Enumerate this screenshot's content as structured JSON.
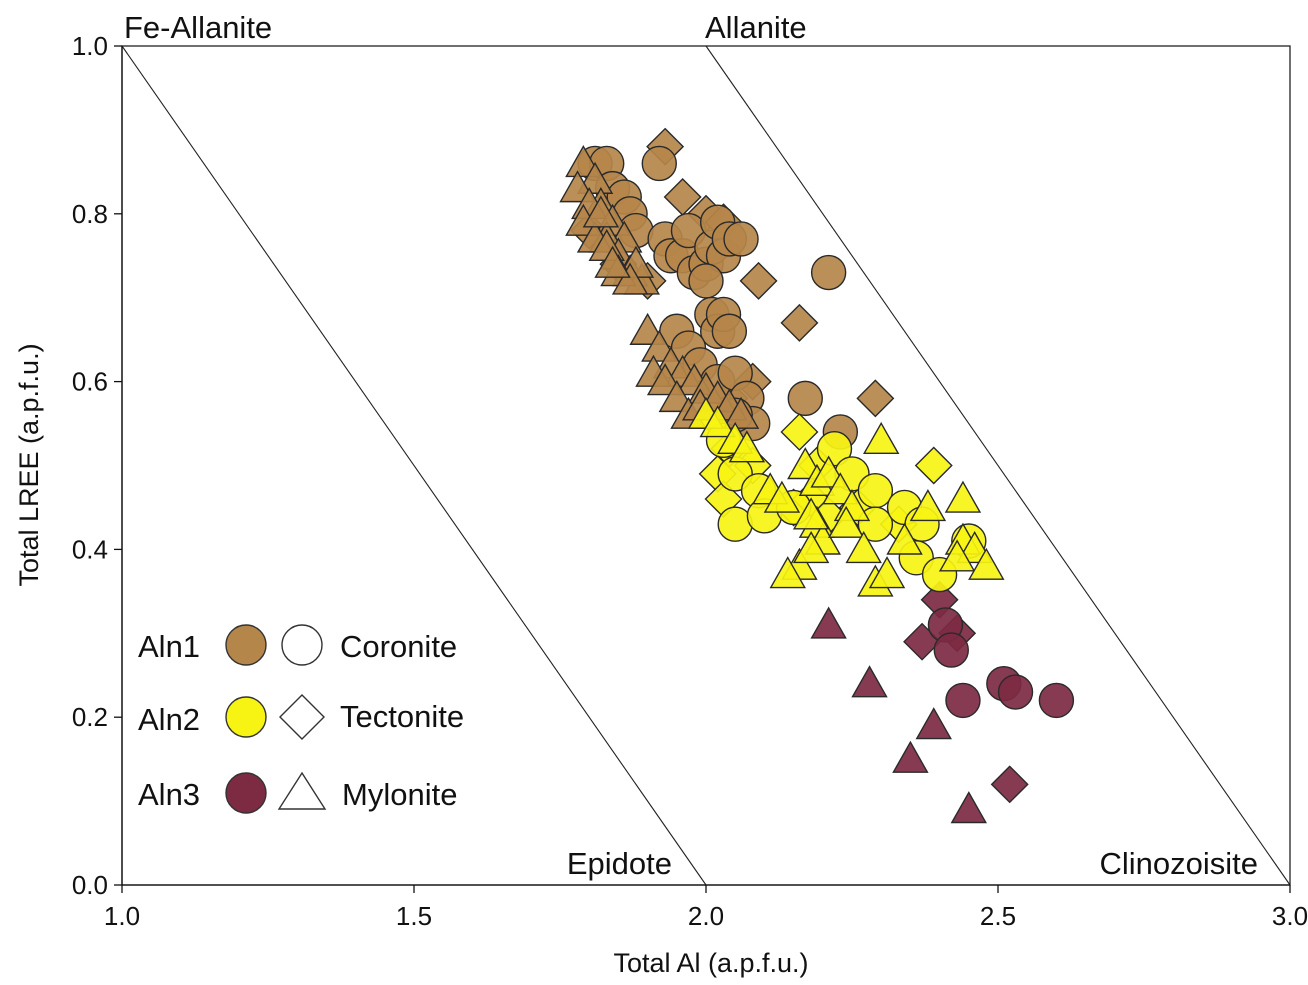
{
  "chart_data": {
    "type": "scatter",
    "xlabel": "Total Al (a.p.f.u.)",
    "ylabel": "Total LREE (a.p.f.u.)",
    "xlim": [
      1.0,
      3.0
    ],
    "ylim": [
      0.0,
      1.0
    ],
    "x_ticks": [
      "1.0",
      "1.5",
      "2.0",
      "2.5",
      "3.0"
    ],
    "y_ticks": [
      "0.0",
      "0.2",
      "0.4",
      "0.6",
      "0.8",
      "1.0"
    ],
    "grid": false,
    "field_labels": {
      "fe_allanite": "Fe-Allanite",
      "allanite": "Allanite",
      "epidote": "Epidote",
      "clinozoisite": "Clinozoisite"
    },
    "field_boundaries": [
      {
        "x": [
          1.0,
          2.0
        ],
        "y": [
          1.0,
          0.0
        ]
      },
      {
        "x": [
          2.0,
          3.0
        ],
        "y": [
          1.0,
          0.0
        ]
      }
    ],
    "legend": {
      "position": "bottom-left",
      "groups": [
        {
          "label": "Aln1",
          "color": "#b5864a"
        },
        {
          "label": "Aln2",
          "color": "#f7f414"
        },
        {
          "label": "Aln3",
          "color": "#7d2a43"
        }
      ],
      "textures": [
        {
          "label": "Coronite",
          "marker": "circle"
        },
        {
          "label": "Tectonite",
          "marker": "diamond"
        },
        {
          "label": "Mylonite",
          "marker": "triangle"
        }
      ]
    },
    "series": [
      {
        "group": "Aln1",
        "marker": "circle",
        "points": [
          [
            1.81,
            0.86
          ],
          [
            1.83,
            0.86
          ],
          [
            1.84,
            0.83
          ],
          [
            1.86,
            0.82
          ],
          [
            1.87,
            0.8
          ],
          [
            1.88,
            0.78
          ],
          [
            1.92,
            0.86
          ],
          [
            1.93,
            0.77
          ],
          [
            1.94,
            0.75
          ],
          [
            1.96,
            0.75
          ],
          [
            1.97,
            0.78
          ],
          [
            1.98,
            0.73
          ],
          [
            2.0,
            0.74
          ],
          [
            2.01,
            0.76
          ],
          [
            2.02,
            0.79
          ],
          [
            2.03,
            0.75
          ],
          [
            2.04,
            0.77
          ],
          [
            2.06,
            0.77
          ],
          [
            2.0,
            0.72
          ],
          [
            2.01,
            0.68
          ],
          [
            2.02,
            0.66
          ],
          [
            2.03,
            0.68
          ],
          [
            2.04,
            0.66
          ],
          [
            1.95,
            0.66
          ],
          [
            1.97,
            0.64
          ],
          [
            1.99,
            0.62
          ],
          [
            2.02,
            0.6
          ],
          [
            2.05,
            0.61
          ],
          [
            2.07,
            0.58
          ],
          [
            2.08,
            0.55
          ],
          [
            2.05,
            0.56
          ],
          [
            2.21,
            0.73
          ],
          [
            2.17,
            0.58
          ],
          [
            2.23,
            0.54
          ]
        ]
      },
      {
        "group": "Aln1",
        "marker": "diamond",
        "points": [
          [
            1.93,
            0.88
          ],
          [
            1.96,
            0.82
          ],
          [
            2.0,
            0.8
          ],
          [
            2.03,
            0.79
          ],
          [
            2.09,
            0.72
          ],
          [
            2.16,
            0.67
          ],
          [
            2.29,
            0.58
          ],
          [
            2.08,
            0.6
          ],
          [
            2.04,
            0.58
          ],
          [
            1.9,
            0.72
          ],
          [
            1.8,
            0.78
          ],
          [
            1.85,
            0.74
          ]
        ]
      },
      {
        "group": "Aln1",
        "marker": "triangle",
        "points": [
          [
            1.79,
            0.86
          ],
          [
            1.81,
            0.84
          ],
          [
            1.82,
            0.81
          ],
          [
            1.84,
            0.79
          ],
          [
            1.86,
            0.77
          ],
          [
            1.78,
            0.83
          ],
          [
            1.8,
            0.81
          ],
          [
            1.83,
            0.77
          ],
          [
            1.85,
            0.75
          ],
          [
            1.87,
            0.73
          ],
          [
            1.89,
            0.72
          ],
          [
            1.88,
            0.74
          ],
          [
            1.79,
            0.79
          ],
          [
            1.81,
            0.77
          ],
          [
            1.83,
            0.76
          ],
          [
            1.85,
            0.73
          ],
          [
            1.87,
            0.72
          ],
          [
            1.84,
            0.74
          ],
          [
            1.82,
            0.8
          ],
          [
            1.9,
            0.66
          ],
          [
            1.92,
            0.64
          ],
          [
            1.94,
            0.62
          ],
          [
            1.96,
            0.61
          ],
          [
            1.98,
            0.6
          ],
          [
            2.0,
            0.59
          ],
          [
            2.02,
            0.58
          ],
          [
            1.91,
            0.61
          ],
          [
            1.93,
            0.6
          ],
          [
            1.95,
            0.58
          ],
          [
            1.97,
            0.56
          ],
          [
            2.04,
            0.57
          ],
          [
            2.06,
            0.56
          ],
          [
            1.99,
            0.57
          ]
        ]
      },
      {
        "group": "Aln2",
        "marker": "circle",
        "points": [
          [
            2.03,
            0.53
          ],
          [
            2.05,
            0.49
          ],
          [
            2.09,
            0.47
          ],
          [
            2.05,
            0.43
          ],
          [
            2.22,
            0.52
          ],
          [
            2.25,
            0.49
          ],
          [
            2.29,
            0.47
          ],
          [
            2.29,
            0.43
          ],
          [
            2.34,
            0.45
          ],
          [
            2.37,
            0.43
          ],
          [
            2.36,
            0.39
          ],
          [
            2.4,
            0.37
          ],
          [
            2.45,
            0.41
          ],
          [
            2.1,
            0.44
          ],
          [
            2.15,
            0.45
          ]
        ]
      },
      {
        "group": "Aln2",
        "marker": "diamond",
        "points": [
          [
            2.01,
            0.56
          ],
          [
            2.04,
            0.52
          ],
          [
            2.08,
            0.5
          ],
          [
            2.02,
            0.49
          ],
          [
            2.16,
            0.54
          ],
          [
            2.19,
            0.5
          ],
          [
            2.15,
            0.45
          ],
          [
            2.18,
            0.46
          ],
          [
            2.21,
            0.44
          ],
          [
            2.33,
            0.43
          ],
          [
            2.39,
            0.5
          ],
          [
            2.26,
            0.45
          ],
          [
            2.03,
            0.46
          ]
        ]
      },
      {
        "group": "Aln2",
        "marker": "triangle",
        "points": [
          [
            2.0,
            0.56
          ],
          [
            2.02,
            0.55
          ],
          [
            2.05,
            0.53
          ],
          [
            2.07,
            0.52
          ],
          [
            2.11,
            0.47
          ],
          [
            2.13,
            0.46
          ],
          [
            2.17,
            0.5
          ],
          [
            2.19,
            0.48
          ],
          [
            2.21,
            0.49
          ],
          [
            2.23,
            0.47
          ],
          [
            2.25,
            0.45
          ],
          [
            2.19,
            0.43
          ],
          [
            2.2,
            0.41
          ],
          [
            2.24,
            0.43
          ],
          [
            2.16,
            0.38
          ],
          [
            2.18,
            0.4
          ],
          [
            2.14,
            0.37
          ],
          [
            2.27,
            0.4
          ],
          [
            2.29,
            0.36
          ],
          [
            2.31,
            0.37
          ],
          [
            2.34,
            0.41
          ],
          [
            2.38,
            0.45
          ],
          [
            2.44,
            0.46
          ],
          [
            2.44,
            0.41
          ],
          [
            2.46,
            0.4
          ],
          [
            2.43,
            0.39
          ],
          [
            2.48,
            0.38
          ],
          [
            2.3,
            0.53
          ],
          [
            2.18,
            0.44
          ]
        ]
      },
      {
        "group": "Aln3",
        "marker": "circle",
        "points": [
          [
            2.41,
            0.31
          ],
          [
            2.42,
            0.28
          ],
          [
            2.44,
            0.22
          ],
          [
            2.51,
            0.24
          ],
          [
            2.53,
            0.23
          ],
          [
            2.6,
            0.22
          ]
        ]
      },
      {
        "group": "Aln3",
        "marker": "diamond",
        "points": [
          [
            2.4,
            0.34
          ],
          [
            2.37,
            0.29
          ],
          [
            2.43,
            0.3
          ],
          [
            2.52,
            0.12
          ]
        ]
      },
      {
        "group": "Aln3",
        "marker": "triangle",
        "points": [
          [
            2.21,
            0.31
          ],
          [
            2.28,
            0.24
          ],
          [
            2.39,
            0.19
          ],
          [
            2.35,
            0.15
          ],
          [
            2.45,
            0.09
          ]
        ]
      }
    ]
  }
}
